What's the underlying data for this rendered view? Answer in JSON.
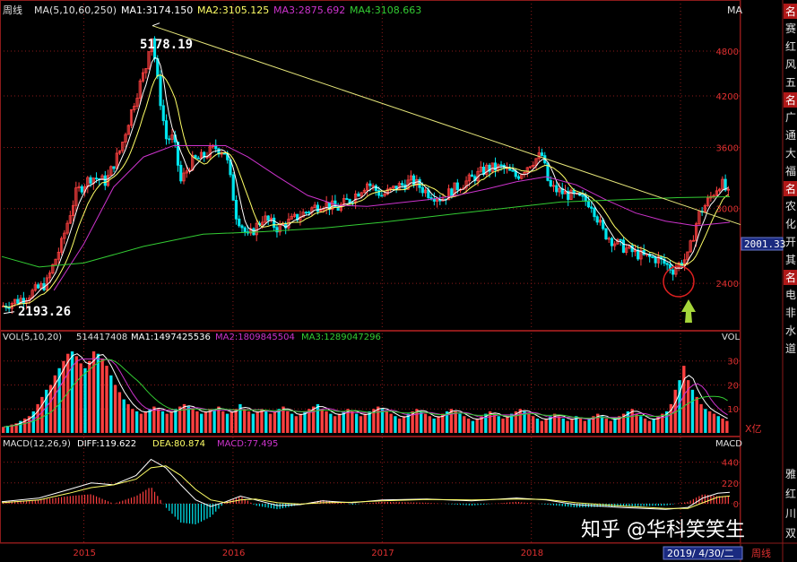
{
  "colors": {
    "background": "#000000",
    "grid_red": "#8b1a1a",
    "candle_up": "#ff4040",
    "candle_down": "#00e5ee",
    "ma5": "#ffffff",
    "ma10": "#ffff66",
    "ma60": "#cc33cc",
    "ma250": "#33cc33",
    "trendline": "#e6e67a",
    "axis_text": "#e03030",
    "price_label_bg": "#1a2a80",
    "watermark": "#ffffff"
  },
  "header": {
    "period": "周线",
    "ma_params": "MA(5,10,60,250)",
    "ma1": "MA1:3174.150",
    "ma2": "MA2:3105.125",
    "ma3": "MA3:2875.692",
    "ma4": "MA4:3108.663",
    "ma_tag": "MA"
  },
  "annotations": {
    "high": "5178.19",
    "low": "2193.26",
    "current_price": "2001.33"
  },
  "vol_header": {
    "params": "VOL(5,10,20)",
    "value": "514417408",
    "ma1": "MA1:1497425536",
    "ma2": "MA2:1809845504",
    "ma3": "MA3:1289047296",
    "tag": "VOL",
    "unit": "X亿"
  },
  "macd_header": {
    "params": "MACD(12,26,9)",
    "diff": "DIFF:119.622",
    "dea": "DEA:80.874",
    "macd": "MACD:77.495",
    "tag": "MACD"
  },
  "bottom": {
    "date": "2019/ 4/30/二",
    "period_tab": "周线"
  },
  "watermark": "知乎 @华科笑笑生",
  "side_panel": {
    "groups": [
      {
        "header": "名",
        "items": [
          "赛",
          "红",
          "风",
          "五"
        ]
      },
      {
        "header": "名",
        "items": [
          "广",
          "通",
          "大",
          "福"
        ]
      },
      {
        "header": "名",
        "items": [
          "农",
          "化",
          "开",
          "其"
        ]
      },
      {
        "header": "名",
        "items": [
          "电",
          "非",
          "水",
          "道"
        ]
      }
    ],
    "lower_items": [
      "雅",
      "红",
      "川",
      "双"
    ]
  },
  "chart_data": [
    {
      "type": "candlestick",
      "name": "price",
      "x_ticks": [
        "2015",
        "2016",
        "2017",
        "2018",
        "2019"
      ],
      "y_ticks": [
        2400,
        3000,
        3600,
        4200,
        4800
      ],
      "ylim": [
        2100,
        5300
      ],
      "close_path": [
        [
          2014.45,
          2240
        ],
        [
          2014.6,
          2300
        ],
        [
          2014.75,
          2400
        ],
        [
          2014.85,
          2700
        ],
        [
          2014.95,
          3150
        ],
        [
          2015.05,
          3300
        ],
        [
          2015.15,
          3250
        ],
        [
          2015.25,
          3600
        ],
        [
          2015.35,
          4200
        ],
        [
          2015.42,
          4600
        ],
        [
          2015.45,
          5100
        ],
        [
          2015.5,
          4300
        ],
        [
          2015.55,
          3700
        ],
        [
          2015.6,
          3700
        ],
        [
          2015.65,
          3250
        ],
        [
          2015.72,
          3450
        ],
        [
          2015.8,
          3500
        ],
        [
          2015.88,
          3600
        ],
        [
          2015.95,
          3550
        ],
        [
          2016.02,
          2950
        ],
        [
          2016.1,
          2750
        ],
        [
          2016.2,
          2920
        ],
        [
          2016.3,
          2830
        ],
        [
          2016.4,
          2900
        ],
        [
          2016.5,
          2980
        ],
        [
          2016.6,
          3050
        ],
        [
          2016.7,
          3000
        ],
        [
          2016.8,
          3100
        ],
        [
          2016.9,
          3240
        ],
        [
          2017.0,
          3120
        ],
        [
          2017.1,
          3200
        ],
        [
          2017.2,
          3260
        ],
        [
          2017.3,
          3150
        ],
        [
          2017.4,
          3090
        ],
        [
          2017.5,
          3200
        ],
        [
          2017.6,
          3280
        ],
        [
          2017.7,
          3380
        ],
        [
          2017.8,
          3390
        ],
        [
          2017.9,
          3300
        ],
        [
          2018.0,
          3450
        ],
        [
          2018.07,
          3520
        ],
        [
          2018.12,
          3200
        ],
        [
          2018.2,
          3150
        ],
        [
          2018.3,
          3100
        ],
        [
          2018.4,
          3050
        ],
        [
          2018.48,
          2800
        ],
        [
          2018.55,
          2720
        ],
        [
          2018.65,
          2650
        ],
        [
          2018.75,
          2600
        ],
        [
          2018.85,
          2580
        ],
        [
          2018.95,
          2500
        ],
        [
          2019.05,
          2600
        ],
        [
          2019.12,
          2940
        ],
        [
          2019.2,
          3100
        ],
        [
          2019.27,
          3250
        ],
        [
          2019.33,
          3100
        ]
      ],
      "ma60_path": [
        [
          2014.8,
          2350
        ],
        [
          2015.0,
          2700
        ],
        [
          2015.2,
          3200
        ],
        [
          2015.4,
          3500
        ],
        [
          2015.6,
          3620
        ],
        [
          2015.8,
          3620
        ],
        [
          2015.95,
          3620
        ],
        [
          2016.1,
          3500
        ],
        [
          2016.3,
          3300
        ],
        [
          2016.5,
          3120
        ],
        [
          2016.7,
          3030
        ],
        [
          2016.9,
          3020
        ],
        [
          2017.1,
          3050
        ],
        [
          2017.3,
          3080
        ],
        [
          2017.5,
          3120
        ],
        [
          2017.7,
          3180
        ],
        [
          2017.9,
          3250
        ],
        [
          2018.1,
          3300
        ],
        [
          2018.3,
          3220
        ],
        [
          2018.5,
          3080
        ],
        [
          2018.7,
          2960
        ],
        [
          2018.9,
          2890
        ],
        [
          2019.1,
          2850
        ],
        [
          2019.33,
          2880
        ]
      ],
      "ma250_path": [
        [
          2014.45,
          2600
        ],
        [
          2014.7,
          2520
        ],
        [
          2015.0,
          2550
        ],
        [
          2015.4,
          2680
        ],
        [
          2015.8,
          2780
        ],
        [
          2016.2,
          2800
        ],
        [
          2016.6,
          2830
        ],
        [
          2017.0,
          2880
        ],
        [
          2017.4,
          2940
        ],
        [
          2017.8,
          3000
        ],
        [
          2018.2,
          3060
        ],
        [
          2018.6,
          3080
        ],
        [
          2019.0,
          3100
        ],
        [
          2019.33,
          3108
        ]
      ],
      "trendline": [
        [
          2015.46,
          5178.19
        ],
        [
          2019.45,
          2860
        ]
      ],
      "high": {
        "x": 2015.46,
        "y": 5178.19
      },
      "low": {
        "x": 2014.45,
        "y": 2193.26
      }
    },
    {
      "type": "bar",
      "name": "volume",
      "unit": "亿",
      "y_ticks": [
        10,
        20,
        30
      ],
      "ylim": [
        0,
        37
      ],
      "x_range": [
        2014.45,
        2019.33
      ],
      "values": [
        2.5,
        3,
        3.5,
        4,
        5,
        6,
        7,
        9,
        12,
        15,
        18,
        20,
        24,
        27,
        30,
        33,
        34,
        32,
        29,
        27,
        30,
        34,
        33,
        31,
        28,
        24,
        20,
        17,
        14,
        12,
        10,
        9,
        8,
        9,
        10,
        11,
        10,
        9,
        8,
        9,
        10,
        11,
        12,
        11,
        10,
        9,
        8,
        9,
        10,
        10,
        11,
        9,
        8,
        9,
        10,
        12,
        10,
        9,
        8,
        9,
        10,
        9,
        8,
        9,
        10,
        11,
        9,
        8,
        7,
        8,
        9,
        10,
        11,
        12,
        10,
        9,
        8,
        7,
        8,
        9,
        10,
        9,
        8,
        7,
        8,
        9,
        10,
        11,
        10,
        9,
        8,
        7,
        6,
        7,
        8,
        9,
        10,
        9,
        8,
        7,
        6,
        7,
        8,
        9,
        10,
        9,
        8,
        7,
        6,
        5,
        6,
        7,
        8,
        9,
        8,
        7,
        6,
        7,
        8,
        9,
        10,
        9,
        8,
        7,
        6,
        5,
        6,
        7,
        8,
        7,
        6,
        5,
        6,
        7,
        6,
        5,
        6,
        7,
        8,
        7,
        6,
        5,
        6,
        7,
        8,
        9,
        10,
        8,
        7,
        6,
        5,
        6,
        7,
        8,
        9,
        12,
        18,
        22,
        28,
        22,
        18,
        15,
        12,
        10,
        9,
        8,
        7,
        6,
        5
      ]
    },
    {
      "type": "bar",
      "name": "macd",
      "y_ticks": [
        0,
        220,
        440
      ],
      "ylim": [
        -400,
        560
      ],
      "x_range": [
        2014.45,
        2019.33
      ],
      "diff_path": [
        [
          2014.45,
          20
        ],
        [
          2014.7,
          60
        ],
        [
          2014.9,
          150
        ],
        [
          2015.05,
          220
        ],
        [
          2015.2,
          200
        ],
        [
          2015.35,
          300
        ],
        [
          2015.45,
          470
        ],
        [
          2015.55,
          380
        ],
        [
          2015.65,
          200
        ],
        [
          2015.75,
          40
        ],
        [
          2015.85,
          -30
        ],
        [
          2015.95,
          20
        ],
        [
          2016.05,
          80
        ],
        [
          2016.15,
          40
        ],
        [
          2016.3,
          -20
        ],
        [
          2016.45,
          -10
        ],
        [
          2016.6,
          30
        ],
        [
          2016.8,
          10
        ],
        [
          2017.0,
          40
        ],
        [
          2017.3,
          50
        ],
        [
          2017.6,
          30
        ],
        [
          2017.9,
          60
        ],
        [
          2018.1,
          40
        ],
        [
          2018.3,
          -10
        ],
        [
          2018.6,
          -40
        ],
        [
          2018.9,
          -60
        ],
        [
          2019.05,
          -40
        ],
        [
          2019.15,
          60
        ],
        [
          2019.25,
          110
        ],
        [
          2019.33,
          120
        ]
      ],
      "dea_path": [
        [
          2014.45,
          10
        ],
        [
          2014.7,
          40
        ],
        [
          2014.9,
          110
        ],
        [
          2015.05,
          170
        ],
        [
          2015.2,
          200
        ],
        [
          2015.35,
          260
        ],
        [
          2015.45,
          380
        ],
        [
          2015.55,
          400
        ],
        [
          2015.65,
          300
        ],
        [
          2015.75,
          150
        ],
        [
          2015.85,
          40
        ],
        [
          2015.95,
          10
        ],
        [
          2016.05,
          40
        ],
        [
          2016.15,
          50
        ],
        [
          2016.3,
          10
        ],
        [
          2016.45,
          -5
        ],
        [
          2016.6,
          10
        ],
        [
          2016.8,
          15
        ],
        [
          2017.0,
          30
        ],
        [
          2017.3,
          45
        ],
        [
          2017.6,
          40
        ],
        [
          2017.9,
          50
        ],
        [
          2018.1,
          45
        ],
        [
          2018.3,
          10
        ],
        [
          2018.6,
          -25
        ],
        [
          2018.9,
          -50
        ],
        [
          2019.05,
          -50
        ],
        [
          2019.15,
          10
        ],
        [
          2019.25,
          70
        ],
        [
          2019.33,
          81
        ]
      ]
    }
  ]
}
